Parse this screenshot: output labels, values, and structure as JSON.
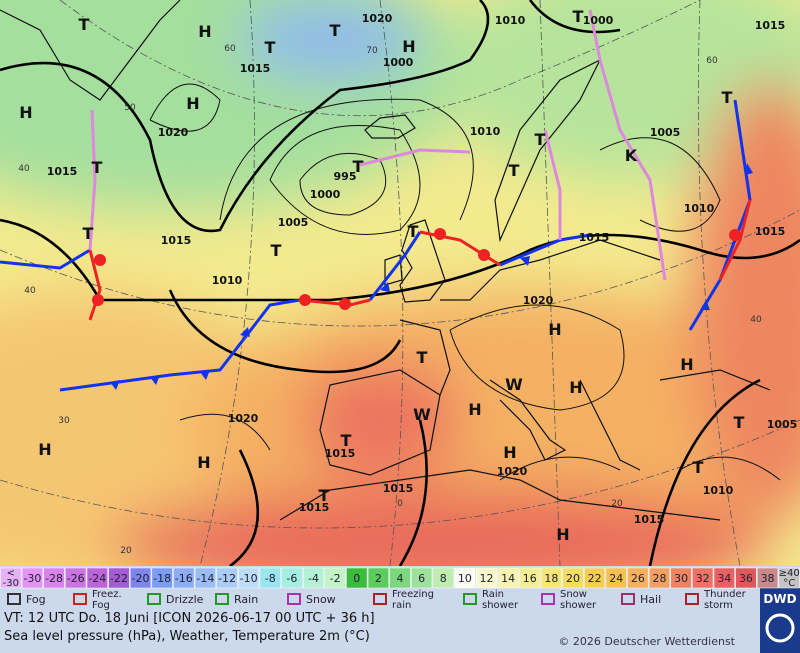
{
  "map": {
    "pressure_labels": [
      "1020",
      "1010",
      "1000",
      "1015",
      "1015",
      "1000",
      "1020",
      "1010",
      "1005",
      "1015",
      "995",
      "1000",
      "1005",
      "1015",
      "1010",
      "1015",
      "1015",
      "1010",
      "1020",
      "1020",
      "1005",
      "1015",
      "1020",
      "1015",
      "1010",
      "1015",
      "1015"
    ],
    "center_labels": [
      "H",
      "H",
      "H",
      "H",
      "T",
      "T",
      "T",
      "T",
      "T",
      "T",
      "T",
      "T",
      "T",
      "T",
      "T",
      "T",
      "H",
      "H",
      "H",
      "T",
      "H",
      "H",
      "H",
      "H",
      "T",
      "T",
      "H",
      "T",
      "T",
      "K",
      "W",
      "W"
    ],
    "grid_labels": [
      "50",
      "60",
      "40",
      "40",
      "30",
      "20",
      "0",
      "20",
      "40",
      "60",
      "70"
    ]
  },
  "legend": {
    "temperature_scale": [
      {
        "top": "<",
        "bottom": "-30"
      },
      -30,
      -28,
      -26,
      -24,
      -22,
      -20,
      -18,
      -16,
      -14,
      -12,
      -10,
      -8,
      -6,
      -4,
      -2,
      0,
      2,
      4,
      6,
      8,
      10,
      12,
      14,
      16,
      18,
      20,
      22,
      24,
      26,
      28,
      30,
      32,
      34,
      36,
      38,
      {
        "top": "≥40",
        "bottom": "°C"
      }
    ],
    "temperature_colors": [
      "#e6b2f6",
      "#e294f2",
      "#d884ea",
      "#cc74e2",
      "#bc64da",
      "#a45cd2",
      "#7e86ee",
      "#7c9cf2",
      "#8cacf6",
      "#9cbcf8",
      "#acccf8",
      "#bcdcf8",
      "#9ae6f0",
      "#a6eee2",
      "#b4f0d4",
      "#c6f2c8",
      "#3cbc3c",
      "#5ccc5c",
      "#7cd87c",
      "#9ce29c",
      "#c0ecb0",
      "#fcfcf4",
      "#f8f8d0",
      "#f6f4b0",
      "#f6ee92",
      "#f6e676",
      "#f6dc62",
      "#f6ce56",
      "#f6c056",
      "#f6b05e",
      "#f4a062",
      "#f08462",
      "#ee7262",
      "#e66262",
      "#de5a5a",
      "#c88a8a",
      "#c4c4c4"
    ],
    "weather": [
      [
        "Fog"
      ],
      [
        "Freez.",
        "Fog"
      ],
      [
        "Drizzle"
      ],
      [
        "Rain"
      ],
      [
        "Snow"
      ],
      [
        "Freezing",
        "rain"
      ],
      [
        "Rain",
        "shower"
      ],
      [
        "Snow",
        "shower"
      ],
      [
        "Hail"
      ],
      [
        "Thunder",
        "storm"
      ]
    ],
    "logo": "DWD"
  },
  "footer": {
    "valid_time": "VT: 12 UTC Do.  18 Juni [ICON 2026-06-17  00 UTC + 36 h]",
    "description": "Sea level pressure (hPa), Weather, Temperature 2m (°C)",
    "copyright": "© 2026 Deutscher Wetterdienst"
  }
}
